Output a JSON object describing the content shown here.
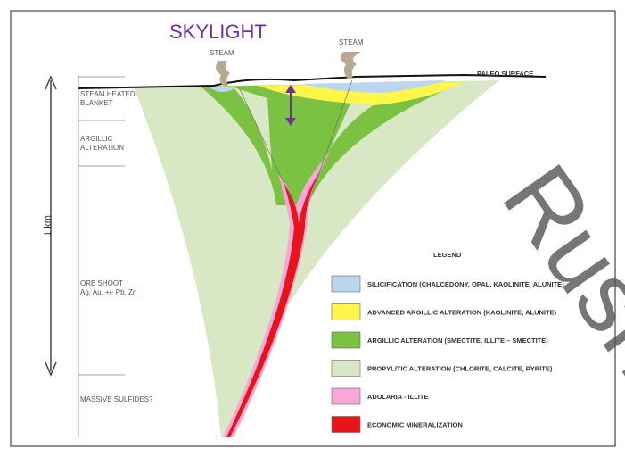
{
  "title": "SKYLIGHT",
  "steam_labels": [
    "STEAM",
    "STEAM"
  ],
  "surface_label": "PALEO SURFACE",
  "scale_label": "1 km",
  "zones": [
    "STEAM HEATED BLANKET",
    "ARGILLIC ALTERATION",
    "ORE SHOOT Ag, Au, +/- Pb, Zn",
    "MASSIVE SULFIDES?"
  ],
  "legend": {
    "title": "LEGEND",
    "items": [
      {
        "label": "SILICIFICATION (CHALCEDONY, OPAL, KAOLINITE, ALUNITE)",
        "color": "#bcd6ee"
      },
      {
        "label": "ADVANCED ARGILLIC ALTERATION (KAOLINITE, ALUNITE)",
        "color": "#fff64a"
      },
      {
        "label": "ARGILLIC ALTERATION (SMECTITE, ILLITE – SMECTITE)",
        "color": "#7cc242"
      },
      {
        "label": "PROPYLITIC ALTERATION (CHLORITE, CALCITE, PYRITE)",
        "color": "#d9e8c4"
      },
      {
        "label": "ADULARIA - ILLITE",
        "color": "#f7a8d8"
      },
      {
        "label": "ECONOMIC MINERALIZATION",
        "color": "#e8141c"
      }
    ]
  },
  "watermark": "Rush"
}
